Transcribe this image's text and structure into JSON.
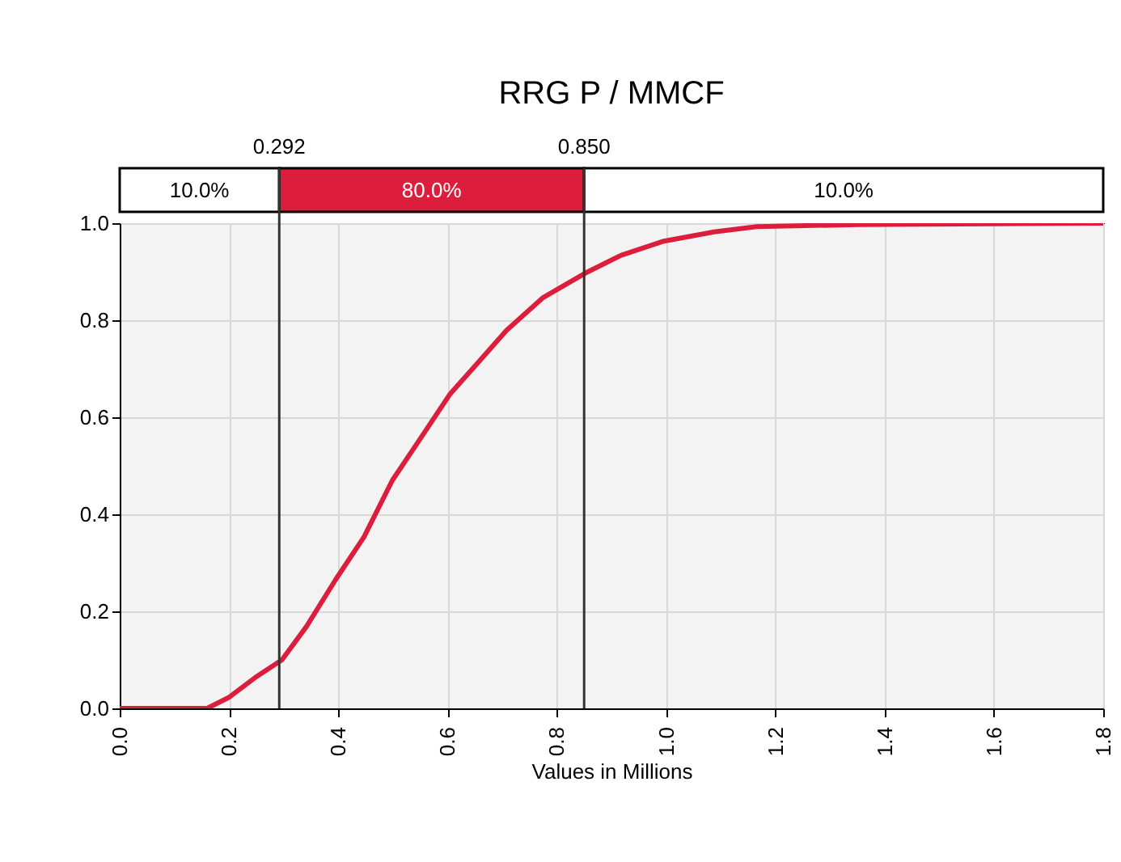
{
  "chart_data": {
    "type": "line",
    "title": "RRG P / MMCF",
    "xlabel": "Values in Millions",
    "x": [
      0.0,
      0.16,
      0.199,
      0.251,
      0.297,
      0.342,
      0.395,
      0.447,
      0.499,
      0.552,
      0.604,
      0.656,
      0.708,
      0.774,
      0.852,
      0.918,
      0.996,
      1.088,
      1.166,
      1.35,
      1.8
    ],
    "series": [
      {
        "color": "#dc1e3c",
        "values": [
          0.0,
          0.0,
          0.022,
          0.066,
          0.1,
          0.169,
          0.265,
          0.353,
          0.47,
          0.559,
          0.647,
          0.713,
          0.779,
          0.846,
          0.897,
          0.934,
          0.963,
          0.982,
          0.993,
          0.997,
          1.0
        ]
      }
    ],
    "xlim": [
      0,
      1.8
    ],
    "ylim": [
      0,
      1.0
    ],
    "xticks": [
      {
        "value": 0,
        "label": "0.0"
      },
      0.2,
      0.4,
      0.6,
      0.8,
      {
        "value": 1,
        "label": "1.0"
      },
      1.2,
      1.4,
      1.6,
      1.8
    ],
    "yticks": [
      {
        "value": 0,
        "label": "0.0"
      },
      0.2,
      0.4,
      0.6,
      0.8,
      {
        "value": 1,
        "label": "1.0"
      }
    ],
    "ref_lines": [
      {
        "axis": "x",
        "value": 0.292,
        "label": "0.292"
      },
      {
        "axis": "x",
        "value": 0.85,
        "label": "0.850"
      }
    ],
    "annotations": [
      "10.0%",
      "80.0%",
      "10.0%"
    ],
    "grid": true,
    "marker": "none",
    "line_style": "solid"
  }
}
